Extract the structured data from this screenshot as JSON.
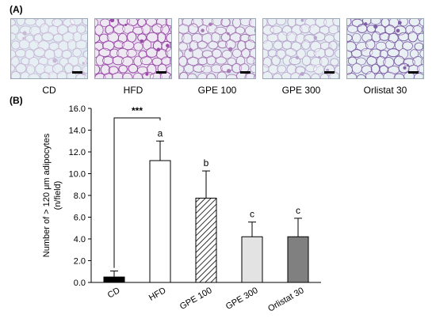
{
  "panel_a": {
    "tag": "(A)",
    "images": [
      {
        "label": "CD",
        "tint": "#d9e6ee",
        "stain": "#c9b7d6"
      },
      {
        "label": "HFD",
        "tint": "#e5dcec",
        "stain": "#9a4aa8"
      },
      {
        "label": "GPE 100",
        "tint": "#dfe5ee",
        "stain": "#a77ab5"
      },
      {
        "label": "GPE 300",
        "tint": "#dde8ef",
        "stain": "#b8a4cc"
      },
      {
        "label": "Orlistat 30",
        "tint": "#dde8ef",
        "stain": "#7f5fa6"
      }
    ]
  },
  "panel_b": {
    "tag": "(B)"
  },
  "chart_data": {
    "type": "bar",
    "categories": [
      "CD",
      "HFD",
      "GPE 100",
      "GPE 300",
      "Orlistat 30"
    ],
    "values": [
      0.5,
      11.2,
      7.75,
      4.2,
      4.2
    ],
    "errors": [
      0.55,
      1.8,
      2.5,
      1.35,
      1.7
    ],
    "significance_letters": [
      "",
      "a",
      "b",
      "c",
      "c"
    ],
    "bracket": {
      "from": "CD",
      "to": "HFD",
      "label": "***"
    },
    "ylabel": "Number of > 120 μm adipocytes",
    "ylabel_unit": "(n/field)",
    "ylim": [
      0,
      16
    ],
    "yticks": [
      "0.0",
      "2.0",
      "4.0",
      "6.0",
      "8.0",
      "10.0",
      "12.0",
      "14.0",
      "16.0"
    ],
    "bar_styles": [
      "solid-black",
      "white",
      "diagonal-hatch",
      "light-gray",
      "dark-gray"
    ],
    "colors": {
      "solid-black": "#000000",
      "white": "#ffffff",
      "light-gray": "#e3e3e3",
      "dark-gray": "#808080"
    },
    "grid": false
  }
}
